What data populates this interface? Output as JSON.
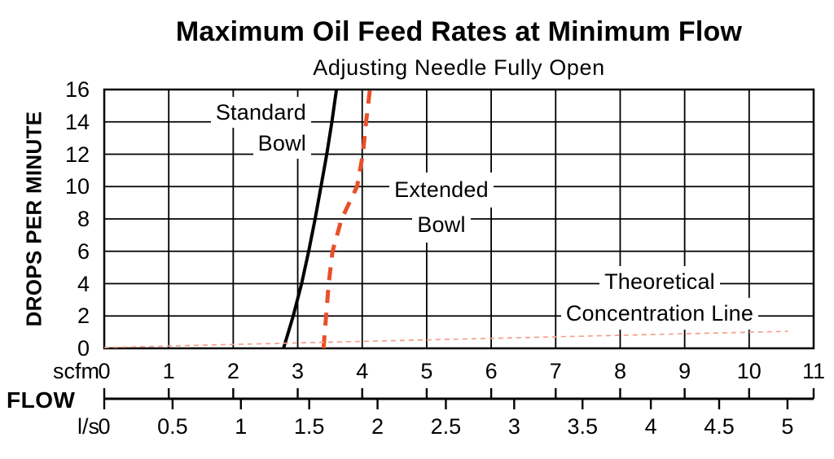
{
  "title": "Maximum Oil Feed Rates at Minimum Flow",
  "subtitle": "Adjusting Needle Fully Open",
  "y_axis": {
    "label": "DROPS PER MINUTE",
    "tick_values": [
      0,
      2,
      4,
      6,
      8,
      10,
      12,
      14,
      16
    ],
    "tick_labels": [
      "0",
      "2",
      "4",
      "6",
      "8",
      "10",
      "12",
      "14",
      "16"
    ]
  },
  "x_axis": {
    "flow_label": "FLOW",
    "scfm": {
      "unit": "scfm",
      "tick_values": [
        0,
        1,
        2,
        3,
        4,
        5,
        6,
        7,
        8,
        9,
        10,
        11
      ],
      "tick_labels": [
        "0",
        "1",
        "2",
        "3",
        "4",
        "5",
        "6",
        "7",
        "8",
        "9",
        "10",
        "11"
      ]
    },
    "ls": {
      "unit": "l/s",
      "tick_values": [
        0,
        0.5,
        1,
        1.5,
        2,
        2.5,
        3,
        3.5,
        4,
        4.5,
        5
      ],
      "tick_labels": [
        "0",
        "0.5",
        "1",
        "1.5",
        "2",
        "2.5",
        "3",
        "3.5",
        "4",
        "4.5",
        "5"
      ],
      "scfm_per_ls": 2.1189
    }
  },
  "annotations": {
    "standard_bowl": {
      "line1": "Standard",
      "line2": "Bowl"
    },
    "extended_bowl": {
      "line1": "Extended",
      "line2": "Bowl"
    },
    "theoretical": {
      "line1": "Theoretical",
      "line2": "Concentration Line"
    }
  },
  "colors": {
    "grid": "#000000",
    "standard_bowl_line": "#000000",
    "extended_bowl_line": "#e8502a",
    "theoretical_line": "#f5a08c",
    "background": "#ffffff",
    "text": "#000000"
  },
  "chart_data": {
    "type": "line",
    "title": "Maximum Oil Feed Rates at Minimum Flow",
    "subtitle": "Adjusting Needle Fully Open",
    "xlabel": "FLOW",
    "ylabel": "DROPS PER MINUTE",
    "x_unit_primary": "scfm",
    "x_unit_secondary": "l/s",
    "xlim": [
      0,
      11
    ],
    "ylim": [
      0,
      16
    ],
    "grid": true,
    "legend": "inline-labels",
    "series": [
      {
        "name": "Standard Bowl",
        "style": "solid",
        "color": "#000000",
        "points": [
          [
            2.78,
            0
          ],
          [
            2.93,
            2
          ],
          [
            3.06,
            4
          ],
          [
            3.17,
            6
          ],
          [
            3.27,
            8
          ],
          [
            3.36,
            10
          ],
          [
            3.45,
            12
          ],
          [
            3.53,
            14
          ],
          [
            3.6,
            16
          ]
        ]
      },
      {
        "name": "Extended Bowl",
        "style": "dashed",
        "color": "#e8502a",
        "points": [
          [
            3.4,
            0
          ],
          [
            3.44,
            2
          ],
          [
            3.48,
            4
          ],
          [
            3.54,
            6
          ],
          [
            3.68,
            8
          ],
          [
            3.92,
            10
          ],
          [
            4.01,
            12
          ],
          [
            4.06,
            14
          ],
          [
            4.12,
            16
          ]
        ]
      },
      {
        "name": "Theoretical Concentration Line",
        "style": "dotted",
        "color": "#f5a08c",
        "points": [
          [
            0,
            0.05
          ],
          [
            10.6,
            1.05
          ]
        ]
      }
    ]
  }
}
